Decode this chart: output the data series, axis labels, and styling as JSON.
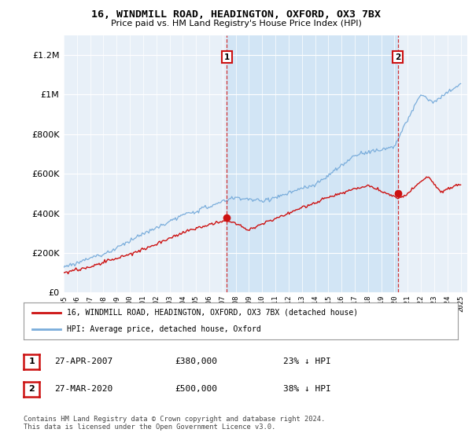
{
  "title": "16, WINDMILL ROAD, HEADINGTON, OXFORD, OX3 7BX",
  "subtitle": "Price paid vs. HM Land Registry's House Price Index (HPI)",
  "bg_color": "#f5f5f5",
  "plot_bg": "#e8f0f8",
  "fill_color": "#d0e4f5",
  "legend_entries": [
    "16, WINDMILL ROAD, HEADINGTON, OXFORD, OX3 7BX (detached house)",
    "HPI: Average price, detached house, Oxford"
  ],
  "annotation1": {
    "num": "1",
    "date": "27-APR-2007",
    "price": "£380,000",
    "pct": "23% ↓ HPI"
  },
  "annotation2": {
    "num": "2",
    "date": "27-MAR-2020",
    "price": "£500,000",
    "pct": "38% ↓ HPI"
  },
  "footer": "Contains HM Land Registry data © Crown copyright and database right 2024.\nThis data is licensed under the Open Government Licence v3.0.",
  "hpi_color": "#7aaddb",
  "price_color": "#cc1111",
  "marker1_x": 2007.33,
  "marker2_x": 2020.25,
  "ylim_max": 1300000,
  "xlim_start": 1995,
  "xlim_end": 2025.5
}
